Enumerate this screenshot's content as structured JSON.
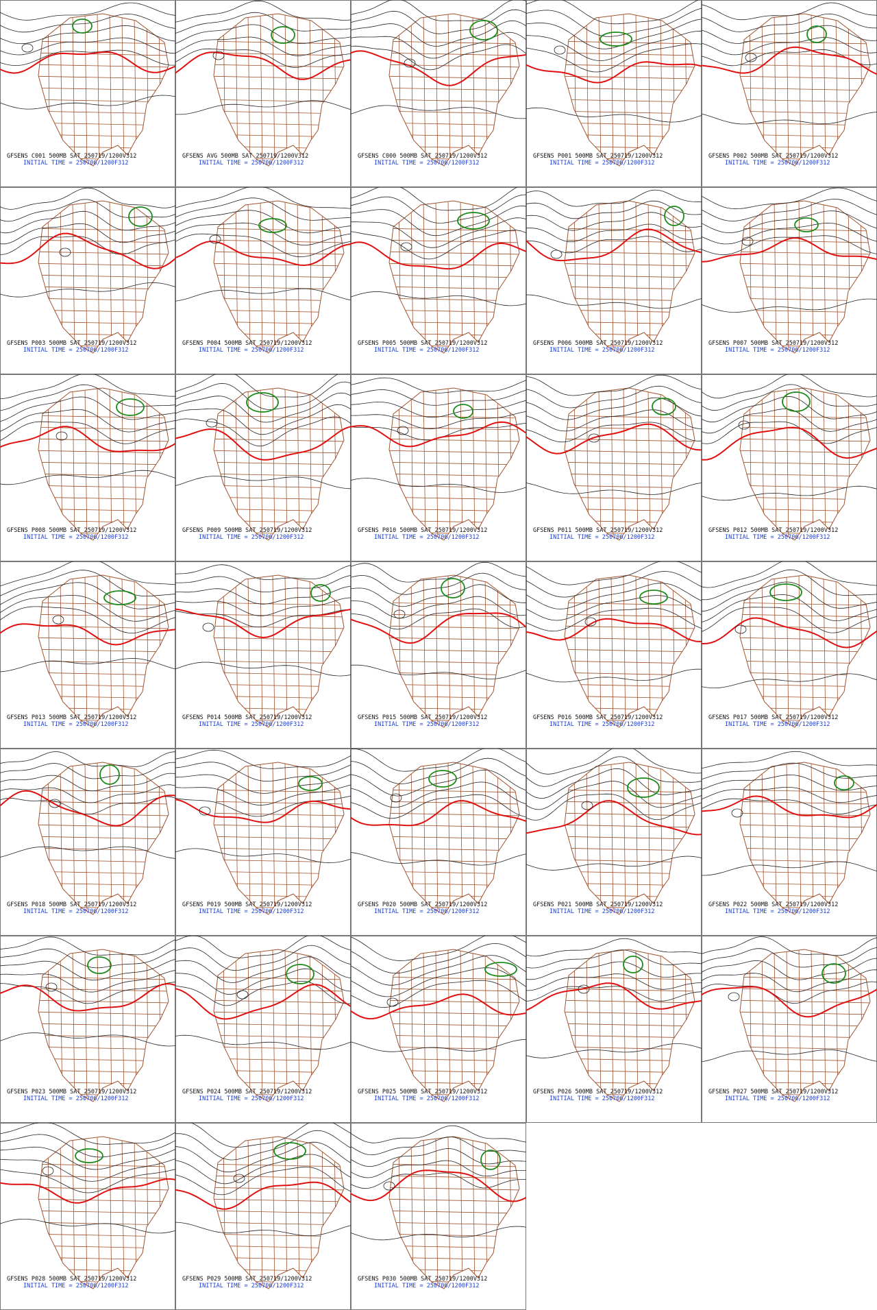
{
  "panels": [
    {
      "title": "GFSENS C001 500MB SAT 250719/1200V312",
      "init": "INITIAL TIME = 250706/1200F312"
    },
    {
      "title": "GFSENS AVG 500MB SAT 250719/1200V312",
      "init": "INITIAL TIME = 250706/1200F312"
    },
    {
      "title": "GFSENS C000 500MB SAT 250719/1200V312",
      "init": "INITIAL TIME = 250706/1200F312"
    },
    {
      "title": "GFSENS P001 500MB SAT 250719/1200V312",
      "init": "INITIAL TIME = 250706/1200F312"
    },
    {
      "title": "GFSENS P002 500MB SAT 250719/1200V312",
      "init": "INITIAL TIME = 250706/1200F312"
    },
    {
      "title": "GFSENS P003 500MB SAT 250719/1200V312",
      "init": "INITIAL TIME = 250706/1200F312"
    },
    {
      "title": "GFSENS P004 500MB SAT 250719/1200V312",
      "init": "INITIAL TIME = 250706/1200F312"
    },
    {
      "title": "GFSENS P005 500MB SAT 250719/1200V312",
      "init": "INITIAL TIME = 250706/1200F312"
    },
    {
      "title": "GFSENS P006 500MB SAT 250719/1200V312",
      "init": "INITIAL TIME = 250706/1200F312"
    },
    {
      "title": "GFSENS P007 500MB SAT 250719/1200V312",
      "init": "INITIAL TIME = 250706/1200F312"
    },
    {
      "title": "GFSENS P008 500MB SAT 250719/1200V312",
      "init": "INITIAL TIME = 250706/1200F312"
    },
    {
      "title": "GFSENS P009 500MB SAT 250719/1200V312",
      "init": "INITIAL TIME = 250706/1200F312"
    },
    {
      "title": "GFSENS P010 500MB SAT 250719/1200V312",
      "init": "INITIAL TIME = 250706/1200F312"
    },
    {
      "title": "GFSENS P011 500MB SAT 250719/1200V312",
      "init": "INITIAL TIME = 250706/1200F312"
    },
    {
      "title": "GFSENS P012 500MB SAT 250719/1200V312",
      "init": "INITIAL TIME = 250706/1200F312"
    },
    {
      "title": "GFSENS P013 500MB SAT 250719/1200V312",
      "init": "INITIAL TIME = 250706/1200F312"
    },
    {
      "title": "GFSENS P014 500MB SAT 250719/1200V312",
      "init": "INITIAL TIME = 250706/1200F312"
    },
    {
      "title": "GFSENS P015 500MB SAT 250719/1200V312",
      "init": "INITIAL TIME = 250706/1200F312"
    },
    {
      "title": "GFSENS P016 500MB SAT 250719/1200V312",
      "init": "INITIAL TIME = 250706/1200F312"
    },
    {
      "title": "GFSENS P017 500MB SAT 250719/1200V312",
      "init": "INITIAL TIME = 250706/1200F312"
    },
    {
      "title": "GFSENS P018 500MB SAT 250719/1200V312",
      "init": "INITIAL TIME = 250706/1200F312"
    },
    {
      "title": "GFSENS P019 500MB SAT 250719/1200V312",
      "init": "INITIAL TIME = 250706/1200F312"
    },
    {
      "title": "GFSENS P020 500MB SAT 250719/1200V312",
      "init": "INITIAL TIME = 250706/1200F312"
    },
    {
      "title": "GFSENS P021 500MB SAT 250719/1200V312",
      "init": "INITIAL TIME = 250706/1200F312"
    },
    {
      "title": "GFSENS P022 500MB SAT 250719/1200V312",
      "init": "INITIAL TIME = 250706/1200F312"
    },
    {
      "title": "GFSENS P023 500MB SAT 250719/1200V312",
      "init": "INITIAL TIME = 250706/1200F312"
    },
    {
      "title": "GFSENS P024 500MB SAT 250719/1200V312",
      "init": "INITIAL TIME = 250706/1200F312"
    },
    {
      "title": "GFSENS P025 500MB SAT 250719/1200V312",
      "init": "INITIAL TIME = 250706/1200F312"
    },
    {
      "title": "GFSENS P026 500MB SAT 250719/1200V312",
      "init": "INITIAL TIME = 250706/1200F312"
    },
    {
      "title": "GFSENS P027 500MB SAT 250719/1200V312",
      "init": "INITIAL TIME = 250706/1200F312"
    },
    {
      "title": "GFSENS P028 500MB SAT 250719/1200V312",
      "init": "INITIAL TIME = 250706/1200F312"
    },
    {
      "title": "GFSENS P029 500MB SAT 250719/1200V312",
      "init": "INITIAL TIME = 250706/1200F312"
    },
    {
      "title": "GFSENS P030 500MB SAT 250719/1200V312",
      "init": "INITIAL TIME = 250706/1200F312"
    }
  ]
}
